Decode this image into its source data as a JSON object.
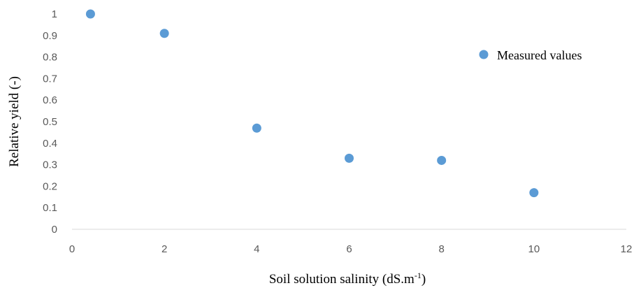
{
  "chart_data": {
    "type": "scatter",
    "title": "",
    "xlabel": "Soil solution salinity (dS.m",
    "xlabel_superscript": "-1",
    "xlabel_suffix": ")",
    "ylabel": "Relative yield (-)",
    "xlim": [
      0,
      12
    ],
    "ylim": [
      0,
      1
    ],
    "x_ticks": [
      "0",
      "2",
      "4",
      "6",
      "8",
      "10",
      "12"
    ],
    "y_ticks": [
      "0",
      "0.1",
      "0.2",
      "0.3",
      "0.4",
      "0.5",
      "0.6",
      "0.7",
      "0.8",
      "0.9",
      "1"
    ],
    "grid": false,
    "legend_position": "top-right",
    "series": [
      {
        "name": "Measured values",
        "color": "#5b9bd5",
        "points": [
          {
            "x": 0.4,
            "y": 1.0
          },
          {
            "x": 2.0,
            "y": 0.91
          },
          {
            "x": 4.0,
            "y": 0.47
          },
          {
            "x": 6.0,
            "y": 0.33
          },
          {
            "x": 8.0,
            "y": 0.32
          },
          {
            "x": 10.0,
            "y": 0.17
          }
        ]
      }
    ]
  }
}
